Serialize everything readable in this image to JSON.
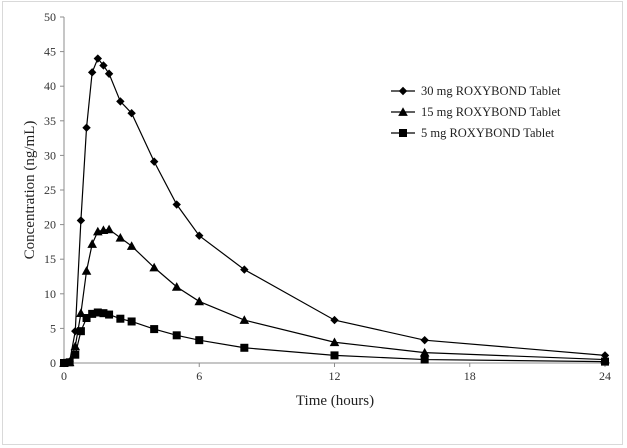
{
  "chart_data": {
    "type": "line",
    "title": "",
    "xlabel": "Time (hours)",
    "ylabel": "Concentration (ng/mL)",
    "xlim": [
      0,
      24
    ],
    "ylim": [
      0,
      50
    ],
    "x_ticks": [
      0,
      6,
      12,
      18,
      24
    ],
    "y_ticks": [
      0,
      5,
      10,
      15,
      20,
      25,
      30,
      35,
      40,
      45,
      50
    ],
    "grid": false,
    "legend_position": "right",
    "x": [
      0,
      0.25,
      0.5,
      0.75,
      1,
      1.25,
      1.5,
      1.75,
      2,
      2.5,
      3,
      4,
      5,
      6,
      8,
      12,
      16,
      24
    ],
    "series": [
      {
        "name": "30 mg ROXYBOND Tablet",
        "marker": "diamond",
        "values": [
          0,
          0.2,
          4.6,
          20.6,
          34,
          42,
          44,
          43,
          41.8,
          37.8,
          36.1,
          29.1,
          22.9,
          18.4,
          13.5,
          6.2,
          3.3,
          1.1
        ]
      },
      {
        "name": "15 mg ROXYBOND Tablet",
        "marker": "triangle",
        "values": [
          0,
          0.1,
          2.4,
          7.2,
          13.3,
          17.2,
          19,
          19.2,
          19.3,
          18.1,
          16.9,
          13.8,
          11,
          8.9,
          6.2,
          3,
          1.5,
          0.5
        ]
      },
      {
        "name": "5 mg ROXYBOND Tablet",
        "marker": "square",
        "values": [
          0,
          0.1,
          1.2,
          4.6,
          6.5,
          7.1,
          7.3,
          7.2,
          7,
          6.4,
          6,
          4.9,
          4,
          3.3,
          2.2,
          1.1,
          0.5,
          0.2
        ]
      }
    ]
  }
}
